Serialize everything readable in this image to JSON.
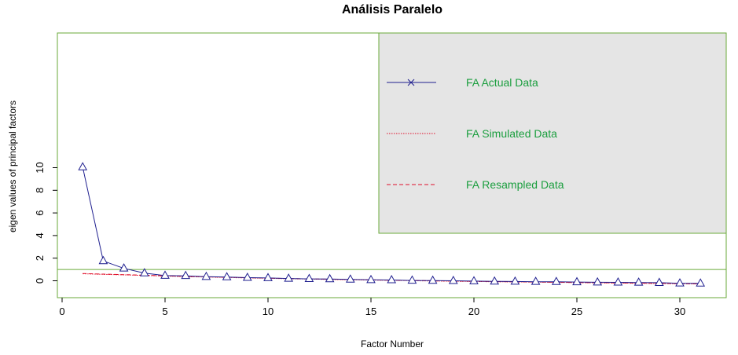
{
  "chart_data": {
    "type": "line",
    "title": "Análisis Paralelo",
    "xlabel": "Factor Number",
    "ylabel": "eigen values of principal factors",
    "xlim": [
      0,
      32
    ],
    "ylim": [
      -0.75,
      11
    ],
    "x_ticks": [
      0,
      5,
      10,
      15,
      20,
      25,
      30
    ],
    "y_ticks": [
      0,
      2,
      4,
      6,
      8,
      10
    ],
    "reference_line": 1,
    "x": [
      1,
      2,
      3,
      4,
      5,
      6,
      7,
      8,
      9,
      10,
      11,
      12,
      13,
      14,
      15,
      16,
      17,
      18,
      19,
      20,
      21,
      22,
      23,
      24,
      25,
      26,
      27,
      28,
      29,
      30,
      31
    ],
    "series": [
      {
        "name": "FA Actual Data",
        "color": "#1f1f8f",
        "style": "solid",
        "marker": "triangle",
        "values": [
          10.05,
          1.75,
          1.1,
          0.68,
          0.46,
          0.44,
          0.36,
          0.33,
          0.28,
          0.25,
          0.2,
          0.17,
          0.16,
          0.12,
          0.08,
          0.07,
          0.03,
          0.02,
          0.0,
          -0.03,
          -0.05,
          -0.06,
          -0.08,
          -0.09,
          -0.11,
          -0.13,
          -0.14,
          -0.15,
          -0.17,
          -0.22,
          -0.23
        ]
      },
      {
        "name": "FA Simulated Data",
        "color": "#e0102a",
        "style": "dotted",
        "values": [
          0.62,
          0.57,
          0.52,
          0.47,
          0.42,
          0.37,
          0.33,
          0.29,
          0.25,
          0.22,
          0.18,
          0.15,
          0.12,
          0.09,
          0.06,
          0.04,
          0.01,
          -0.02,
          -0.04,
          -0.06,
          -0.08,
          -0.1,
          -0.12,
          -0.14,
          -0.16,
          -0.18,
          -0.2,
          -0.22,
          -0.24,
          -0.26,
          -0.28
        ]
      },
      {
        "name": "FA Resampled Data",
        "color": "#e0102a",
        "style": "dashed",
        "values": [
          0.64,
          0.59,
          0.54,
          0.49,
          0.44,
          0.39,
          0.35,
          0.31,
          0.27,
          0.23,
          0.2,
          0.17,
          0.14,
          0.11,
          0.08,
          0.05,
          0.03,
          0.0,
          -0.02,
          -0.05,
          -0.07,
          -0.09,
          -0.11,
          -0.13,
          -0.15,
          -0.17,
          -0.19,
          -0.21,
          -0.23,
          -0.25,
          -0.27
        ]
      }
    ],
    "legend": {
      "placement": "top-right",
      "background": "#e5e5e5",
      "border": "#6aaa3a",
      "text_color": "#1a9e3e"
    },
    "frame_color": "#6aaa3a"
  }
}
